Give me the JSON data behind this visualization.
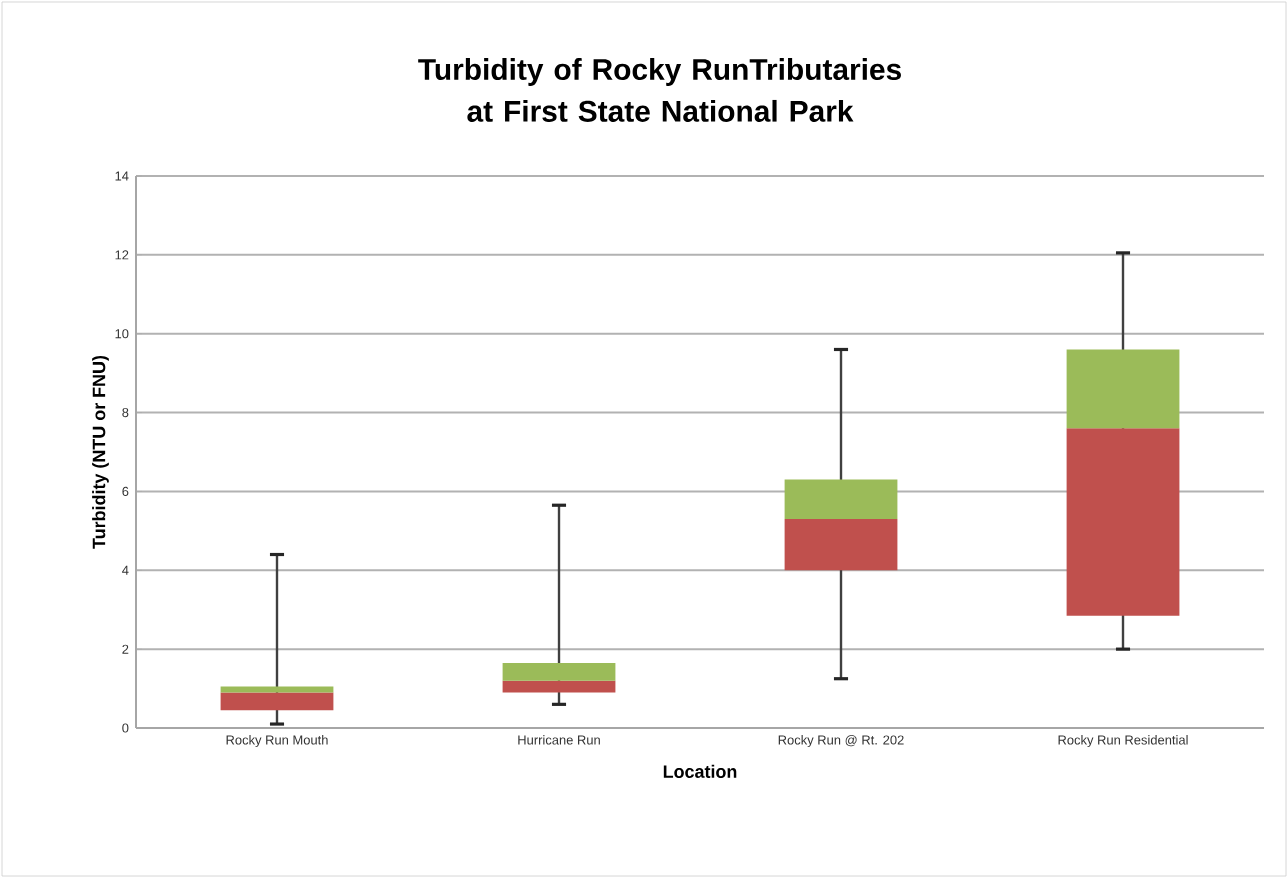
{
  "chart_data": {
    "type": "box",
    "title": "Turbidity of Rocky RunTributaries at First State National Park",
    "xlabel": "Location",
    "ylabel": "Turbidity (NTU or FNU)",
    "categories": [
      "Rocky Run Mouth",
      "Hurricane Run",
      "Rocky Run @ Rt. 202",
      "Rocky Run Residential"
    ],
    "series": [
      {
        "color": "#c0504d",
        "boxes": [
          {
            "low": 0.1,
            "q1": 0.45,
            "median": 0.9,
            "q3": 1.05,
            "high": 4.4
          },
          {
            "low": 0.6,
            "q1": 0.9,
            "median": 1.2,
            "q3": 1.65,
            "high": 5.65
          },
          {
            "low": 1.25,
            "q1": 4.0,
            "median": 5.3,
            "q3": 6.3,
            "high": 9.6
          },
          {
            "low": 2.0,
            "q1": 2.85,
            "median": 7.6,
            "q3": 9.6,
            "high": 12.05
          }
        ]
      }
    ],
    "colors": [
      "#9bbb59",
      "#9bbb59",
      "#9bbb59",
      "#9bbb59"
    ],
    "ylim": [
      0,
      14
    ],
    "yticks": [
      0,
      2,
      4,
      6,
      8,
      10,
      12,
      14
    ],
    "grid": "y"
  }
}
